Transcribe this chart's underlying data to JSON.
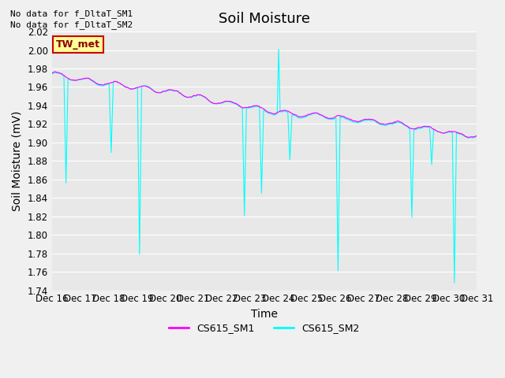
{
  "title": "Soil Moisture",
  "ylabel": "Soil Moisture (mV)",
  "xlabel": "Time",
  "ylim": [
    1.74,
    2.02
  ],
  "yticks": [
    1.74,
    1.76,
    1.78,
    1.8,
    1.82,
    1.84,
    1.86,
    1.88,
    1.9,
    1.92,
    1.94,
    1.96,
    1.98,
    2.0,
    2.02
  ],
  "xtick_positions": [
    0,
    1,
    2,
    3,
    4,
    5,
    6,
    7,
    8,
    9,
    10,
    11,
    12,
    13,
    14,
    15
  ],
  "xtick_labels": [
    "Dec 16",
    "Dec 17",
    "Dec 18",
    "Dec 19",
    "Dec 20",
    "Dec 21",
    "Dec 22",
    "Dec 23",
    "Dec 24",
    "Dec 25",
    "Dec 26",
    "Dec 27",
    "Dec 28",
    "Dec 29",
    "Dec 30",
    "Dec 31"
  ],
  "no_data_text": [
    "No data for f_DltaT_SM1",
    "No data for f_DltaT_SM2"
  ],
  "legend_box_label": "TW_met",
  "legend_box_bg": "#FFFF99",
  "legend_box_border": "#CC0000",
  "color_SM1": "#FF00FF",
  "color_SM2": "#00FFFF",
  "label_SM1": "CS615_SM1",
  "label_SM2": "CS615_SM2",
  "background_color": "#E8E8E8",
  "grid_color": "#FFFFFF",
  "title_fontsize": 13,
  "axis_label_fontsize": 10,
  "tick_fontsize": 8.5,
  "xlim": [
    0,
    15
  ]
}
